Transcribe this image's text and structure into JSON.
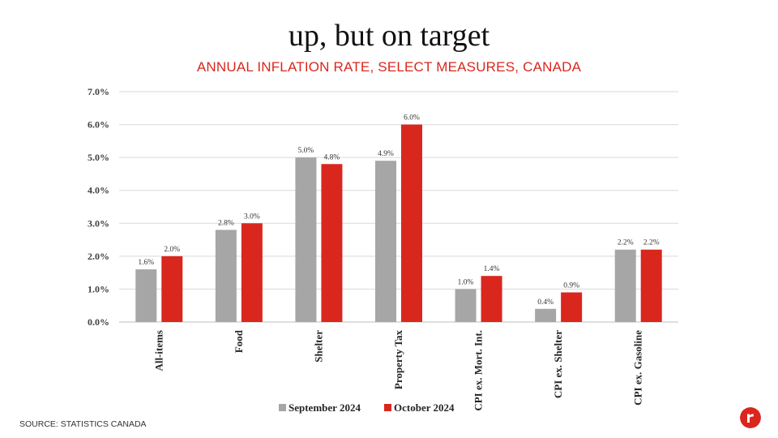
{
  "page": {
    "title": "up, but on target",
    "subtitle": "ANNUAL INFLATION RATE, SELECT MEASURES, CANADA",
    "source": "SOURCE: STATISTICS CANADA"
  },
  "colors": {
    "accent": "#d9271e",
    "september": "#a6a6a6",
    "october": "#d9271e",
    "grid": "#d9d9d9",
    "axis": "#bfbfbf"
  },
  "logo": {
    "icon": "brand-logo-icon"
  },
  "chart_data": {
    "type": "bar",
    "title": "",
    "xlabel": "",
    "ylabel": "",
    "ylim": [
      0,
      7
    ],
    "yticks": [
      "0.0%",
      "1.0%",
      "2.0%",
      "3.0%",
      "4.0%",
      "5.0%",
      "6.0%",
      "7.0%"
    ],
    "grid": true,
    "legend_position": "bottom-center",
    "categories": [
      "All-items",
      "Food",
      "Shelter",
      "Property Tax",
      "CPI ex. Mort. Int.",
      "CPI ex. Shelter",
      "CPI ex. Gasoline"
    ],
    "series": [
      {
        "name": "September 2024",
        "values": [
          1.6,
          2.8,
          5.0,
          4.9,
          1.0,
          0.4,
          2.2
        ],
        "labels": [
          "1.6%",
          "2.8%",
          "5.0%",
          "4.9%",
          "1.0%",
          "0.4%",
          "2.2%"
        ]
      },
      {
        "name": "October 2024",
        "values": [
          2.0,
          3.0,
          4.8,
          6.0,
          1.4,
          0.9,
          2.2
        ],
        "labels": [
          "2.0%",
          "3.0%",
          "4.8%",
          "6.0%",
          "1.4%",
          "0.9%",
          "2.2%"
        ]
      }
    ]
  }
}
